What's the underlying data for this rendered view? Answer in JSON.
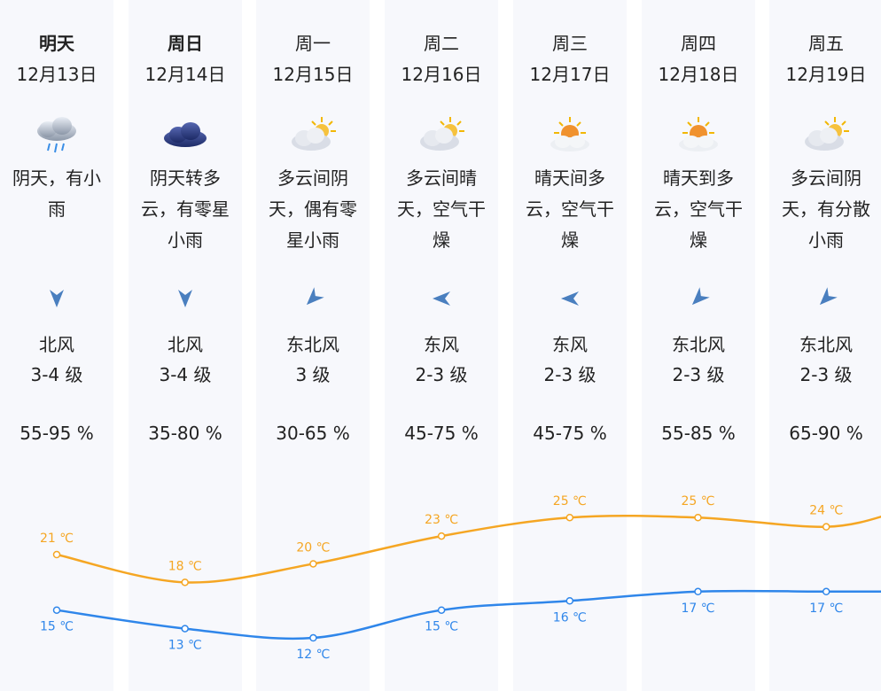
{
  "days": [
    {
      "name": "明天",
      "date": "12月13日",
      "weather": "阴天，有小雨",
      "icon": "light-rain-cloud-icon",
      "wind_dir": "北风",
      "wind_level": "3-4 级",
      "wind_arrow": "north",
      "humidity": "55-95 %",
      "high": "21 ℃",
      "low": "15 ℃",
      "bold": true
    },
    {
      "name": "周日",
      "date": "12月14日",
      "weather": "阴天转多云，有零星小雨",
      "icon": "dark-cloud-icon",
      "wind_dir": "北风",
      "wind_level": "3-4 级",
      "wind_arrow": "north",
      "humidity": "35-80 %",
      "high": "18 ℃",
      "low": "13 ℃",
      "bold": true
    },
    {
      "name": "周一",
      "date": "12月15日",
      "weather": "多云间阴天，偶有零星小雨",
      "icon": "sun-behind-clouds-icon",
      "wind_dir": "东北风",
      "wind_level": "3 级",
      "wind_arrow": "northeast",
      "humidity": "30-65 %",
      "high": "20 ℃",
      "low": "12 ℃",
      "bold": false
    },
    {
      "name": "周二",
      "date": "12月16日",
      "weather": "多云间晴天，空气干燥",
      "icon": "sun-behind-clouds-icon",
      "wind_dir": "东风",
      "wind_level": "2-3 级",
      "wind_arrow": "east",
      "humidity": "45-75 %",
      "high": "23 ℃",
      "low": "15 ℃",
      "bold": false
    },
    {
      "name": "周三",
      "date": "12月17日",
      "weather": "晴天间多云，空气干燥",
      "icon": "sun-over-cloud-icon",
      "wind_dir": "东风",
      "wind_level": "2-3 级",
      "wind_arrow": "east",
      "humidity": "45-75 %",
      "high": "25 ℃",
      "low": "16 ℃",
      "bold": false
    },
    {
      "name": "周四",
      "date": "12月18日",
      "weather": "晴天到多云，空气干燥",
      "icon": "sun-over-cloud-icon",
      "wind_dir": "东北风",
      "wind_level": "2-3 级",
      "wind_arrow": "northeast",
      "humidity": "55-85 %",
      "high": "25 ℃",
      "low": "17 ℃",
      "bold": false
    },
    {
      "name": "周五",
      "date": "12月19日",
      "weather": "多云间阴天，有分散小雨",
      "icon": "sun-behind-clouds-icon",
      "wind_dir": "东北风",
      "wind_level": "2-3 级",
      "wind_arrow": "northeast",
      "humidity": "65-90 %",
      "high": "24 ℃",
      "low": "17 ℃",
      "bold": false
    }
  ],
  "colors": {
    "high_line": "#f5a623",
    "low_line": "#2f86ea",
    "column_bg": "#f7f8fc",
    "arrow": "#4a7fbf"
  },
  "chart_data": {
    "type": "line",
    "categories": [
      "12月13日",
      "12月14日",
      "12月15日",
      "12月16日",
      "12月17日",
      "12月18日",
      "12月19日"
    ],
    "series": [
      {
        "values": [
          21,
          18,
          20,
          23,
          25,
          25,
          24
        ]
      },
      {
        "values": [
          15,
          13,
          12,
          15,
          16,
          17,
          17
        ]
      }
    ],
    "ylabel": "",
    "grid": false
  }
}
